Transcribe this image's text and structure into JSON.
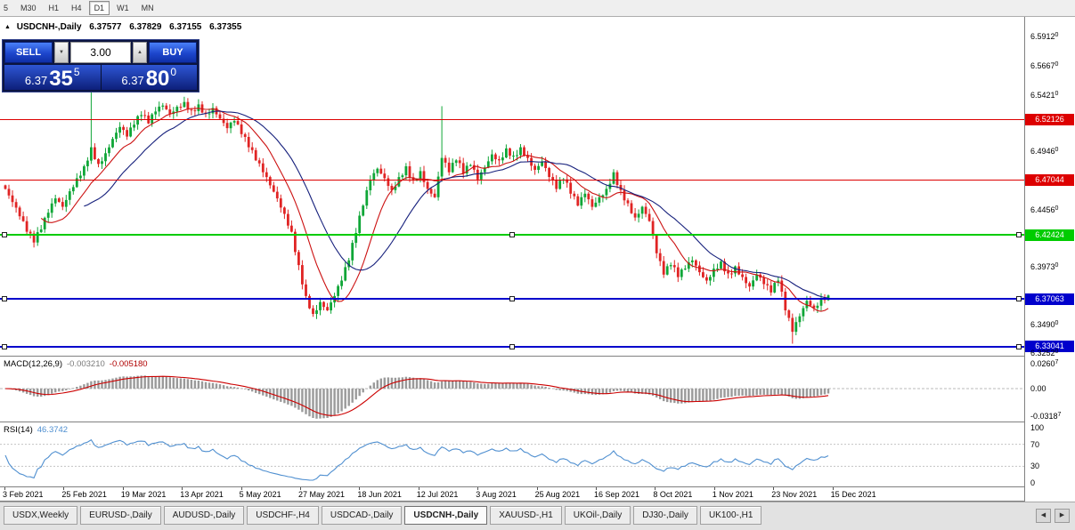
{
  "toolbar": {
    "buttons": [
      "5",
      "M30",
      "H1",
      "H4",
      "D1",
      "W1",
      "MN"
    ],
    "active": "D1"
  },
  "chart": {
    "collapse_arrow": "▲",
    "symbol_title": "USDCNH-,Daily",
    "open": "6.37577",
    "high": "6.37829",
    "low": "6.37155",
    "close": "6.37355"
  },
  "trade_panel": {
    "sell_label": "SELL",
    "buy_label": "BUY",
    "volume": "3.00",
    "volume_down_icon": "▼",
    "volume_up_icon": "▲",
    "sell_price": {
      "small": "6.37",
      "big": "35",
      "sup": "5"
    },
    "buy_price": {
      "small": "6.37",
      "big": "80",
      "sup": "0"
    }
  },
  "price_scale": {
    "labels": [
      {
        "text": "6.5912",
        "sup": "0",
        "price": 6.5912
      },
      {
        "text": "6.5667",
        "sup": "0",
        "price": 6.5667
      },
      {
        "text": "6.5421",
        "sup": "0",
        "price": 6.5421
      },
      {
        "text": "6.4946",
        "sup": "0",
        "price": 6.4946
      },
      {
        "text": "6.4456",
        "sup": "0",
        "price": 6.4456
      },
      {
        "text": "6.3973",
        "sup": "0",
        "price": 6.3973
      },
      {
        "text": "6.3490",
        "sup": "0",
        "price": 6.349
      },
      {
        "text": "6.3252",
        "sup": "0",
        "price": 6.3252
      }
    ],
    "level_boxes": [
      {
        "text": "6.52126",
        "price": 6.52126,
        "color": "#dd0000",
        "thickness": 1,
        "selected": false
      },
      {
        "text": "6.47044",
        "price": 6.47044,
        "color": "#dd0000",
        "thickness": 1,
        "selected": false
      },
      {
        "text": "6.42424",
        "price": 6.42424,
        "color": "#00cc00",
        "thickness": 2,
        "selected": true
      },
      {
        "text": "6.37063",
        "price": 6.37063,
        "color": "#0000cc",
        "thickness": 2,
        "selected": true
      },
      {
        "text": "6.33041",
        "price": 6.33041,
        "color": "#0000cc",
        "thickness": 2,
        "selected": true
      }
    ]
  },
  "macd": {
    "label": "MACD(12,26,9)",
    "value_main": "-0.003210",
    "value_signal": "-0.005180",
    "axis_labels": [
      {
        "text": "0.0260",
        "sup": "7",
        "value": 0.02607
      },
      {
        "text": "0.00",
        "sup": "",
        "value": 0
      },
      {
        "text": "-0.0318",
        "sup": "7",
        "value": -0.03187
      }
    ]
  },
  "rsi": {
    "label": "RSI(14)",
    "value": "46.3742",
    "axis_labels": [
      {
        "text": "100",
        "value": 100
      },
      {
        "text": "70",
        "value": 70
      },
      {
        "text": "30",
        "value": 30
      },
      {
        "text": "0",
        "value": 0
      }
    ],
    "levels": [
      70,
      30
    ]
  },
  "time_axis": {
    "labels": [
      "3 Feb 2021",
      "25 Feb 2021",
      "19 Mar 2021",
      "13 Apr 2021",
      "5 May 2021",
      "27 May 2021",
      "18 Jun 2021",
      "12 Jul 2021",
      "3 Aug 2021",
      "25 Aug 2021",
      "16 Sep 2021",
      "8 Oct 2021",
      "1 Nov 2021",
      "23 Nov 2021",
      "15 Dec 2021"
    ]
  },
  "tabs": {
    "items": [
      {
        "label": "USDX,Weekly",
        "active": false
      },
      {
        "label": "EURUSD-,Daily",
        "active": false
      },
      {
        "label": "AUDUSD-,Daily",
        "active": false
      },
      {
        "label": "USDCHF-,H4",
        "active": false
      },
      {
        "label": "USDCAD-,Daily",
        "active": false
      },
      {
        "label": "USDCNH-,Daily",
        "active": true
      },
      {
        "label": "XAUUSD-,H1",
        "active": false
      },
      {
        "label": "UKOil-,Daily",
        "active": false
      },
      {
        "label": "DJ30-,Daily",
        "active": false
      },
      {
        "label": "UK100-,H1",
        "active": false
      }
    ],
    "scroll_left": "◀",
    "scroll_right": "▶"
  },
  "colors": {
    "up": "#0fa637",
    "down": "#e02424",
    "ma_fast": "#cc1111",
    "ma_slow": "#16207c",
    "macd_hist": "#9a9a9a",
    "macd_signal": "#cc0000",
    "rsi_line": "#4f8fd0",
    "level_red": "#dd0000",
    "level_green": "#00cc00",
    "level_blue": "#0000cc"
  },
  "chart_data": {
    "type": "candlestick",
    "symbol": "USDCNH-",
    "timeframe": "Daily",
    "title": "USDCNH-,Daily",
    "x_tick_labels": [
      "3 Feb 2021",
      "25 Feb 2021",
      "19 Mar 2021",
      "13 Apr 2021",
      "5 May 2021",
      "27 May 2021",
      "18 Jun 2021",
      "12 Jul 2021",
      "3 Aug 2021",
      "25 Aug 2021",
      "16 Sep 2021",
      "8 Oct 2021",
      "1 Nov 2021",
      "23 Nov 2021",
      "15 Dec 2021"
    ],
    "y_tick_labels": [
      "6.59120",
      "6.56670",
      "6.54210",
      "6.49460",
      "6.44560",
      "6.39730",
      "6.34900",
      "6.32520"
    ],
    "ylim": [
      6.3229,
      6.6075
    ],
    "ohlc_last": {
      "open": 6.37577,
      "high": 6.37829,
      "low": 6.37155,
      "close": 6.37355
    },
    "closes": [
      6.463,
      6.452,
      6.44,
      6.427,
      6.418,
      6.429,
      6.443,
      6.455,
      6.448,
      6.461,
      6.472,
      6.482,
      6.498,
      6.484,
      6.493,
      6.505,
      6.515,
      6.507,
      6.517,
      6.525,
      6.518,
      6.528,
      6.533,
      6.526,
      6.532,
      6.536,
      6.529,
      6.534,
      6.526,
      6.531,
      6.522,
      6.514,
      6.52,
      6.509,
      6.498,
      6.487,
      6.477,
      6.466,
      6.455,
      6.442,
      6.427,
      6.399,
      6.373,
      6.358,
      6.368,
      6.361,
      6.373,
      6.386,
      6.403,
      6.426,
      6.449,
      6.47,
      6.48,
      6.472,
      6.462,
      6.473,
      6.482,
      6.47,
      6.478,
      6.463,
      6.456,
      6.489,
      6.477,
      6.487,
      6.476,
      6.483,
      6.471,
      6.481,
      6.492,
      6.487,
      6.497,
      6.491,
      6.498,
      6.489,
      6.479,
      6.486,
      6.473,
      6.463,
      6.471,
      6.459,
      6.449,
      6.459,
      6.448,
      6.456,
      6.463,
      6.477,
      6.462,
      6.451,
      6.439,
      6.448,
      6.436,
      6.409,
      6.391,
      6.399,
      6.389,
      6.396,
      6.403,
      6.393,
      6.386,
      6.396,
      6.402,
      6.392,
      6.398,
      6.389,
      6.381,
      6.391,
      6.383,
      6.376,
      6.386,
      6.361,
      6.343,
      6.356,
      6.369,
      6.363,
      6.371,
      6.374
    ],
    "spike_high": [
      {
        "i": 12,
        "price": 6.5455
      },
      {
        "i": 61,
        "price": 6.5325
      }
    ],
    "spike_low": [
      {
        "i": 43,
        "price": 6.3555
      },
      {
        "i": 110,
        "price": 6.333
      }
    ],
    "horizontal_levels": [
      6.52126,
      6.47044,
      6.42424,
      6.37063,
      6.33041
    ],
    "indicators": {
      "macd": {
        "params": "12,26,9",
        "last_main": -0.00321,
        "last_signal": -0.00518,
        "axis": [
          0.02607,
          0,
          -0.03187
        ]
      },
      "rsi": {
        "params": "14",
        "last": 46.3742,
        "levels": [
          70,
          30
        ],
        "axis": [
          100,
          70,
          30,
          0
        ]
      }
    }
  }
}
